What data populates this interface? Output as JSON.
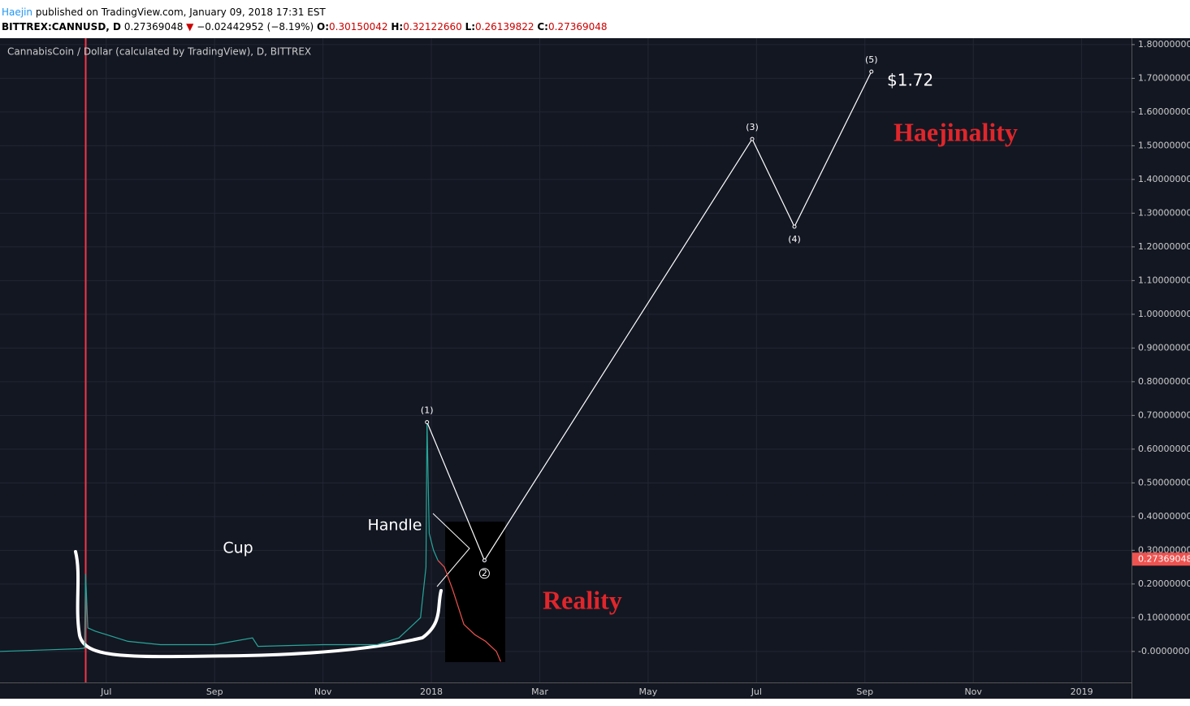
{
  "header": {
    "author": "Haejin",
    "published": " published on TradingView.com, January 09, 2018 17:31 EST",
    "symbol": "BITTREX:CANNUSD, D",
    "last": "0.27369048",
    "arrow": "▼",
    "change": "−0.02442952 (−8.19%)",
    "o_label": "O:",
    "open": "0.30150042",
    "h_label": "H:",
    "high": "0.32122660",
    "l_label": "L:",
    "low": "0.26139822",
    "c_label": "C:",
    "close": "0.27369048"
  },
  "chart_data": {
    "type": "line",
    "title": "CannabisCoin / Dollar (calculated by TradingView), D, BITTREX",
    "categories": [
      "Jul",
      "Sep",
      "Nov",
      "2018",
      "Mar",
      "May",
      "Jul",
      "Sep",
      "Nov",
      "2019"
    ],
    "xlim": [
      -0.98,
      9.46
    ],
    "ylim": [
      -0.092,
      1.819
    ],
    "grid": true,
    "yticks": [
      {
        "value": 1.8,
        "label": "1.80000000"
      },
      {
        "value": 1.7,
        "label": "1.70000000"
      },
      {
        "value": 1.6,
        "label": "1.60000000"
      },
      {
        "value": 1.5,
        "label": "1.50000000"
      },
      {
        "value": 1.4,
        "label": "1.40000000"
      },
      {
        "value": 1.3,
        "label": "1.30000000"
      },
      {
        "value": 1.2,
        "label": "1.20000000"
      },
      {
        "value": 1.1,
        "label": "1.10000000"
      },
      {
        "value": 1.0,
        "label": "1.00000000"
      },
      {
        "value": 0.9,
        "label": "0.90000000"
      },
      {
        "value": 0.8,
        "label": "0.80000000"
      },
      {
        "value": 0.7,
        "label": "0.70000000"
      },
      {
        "value": 0.6,
        "label": "0.60000000"
      },
      {
        "value": 0.5,
        "label": "0.50000000"
      },
      {
        "value": 0.4,
        "label": "0.40000000"
      },
      {
        "value": 0.3,
        "label": "0.30000000"
      },
      {
        "value": 0.2,
        "label": "0.20000000"
      },
      {
        "value": 0.1,
        "label": "0.10000000"
      },
      {
        "value": 0,
        "label": "-0.00000000"
      }
    ],
    "last_price": {
      "value": 0.27369048,
      "label": "0.27369048"
    },
    "series": [
      {
        "color": "#26a69a",
        "x": [
          -0.98,
          -0.5,
          -0.25,
          -0.2,
          -0.19,
          -0.17,
          -0.1,
          0.2,
          0.5,
          1.0,
          1.35,
          1.4,
          2.0,
          2.5,
          2.7,
          2.8,
          2.9,
          2.95,
          2.96,
          2.98,
          3.02,
          3.06
        ],
        "values": [
          0.0,
          0.005,
          0.008,
          0.01,
          0.23,
          0.07,
          0.06,
          0.03,
          0.02,
          0.02,
          0.04,
          0.015,
          0.02,
          0.02,
          0.04,
          0.07,
          0.1,
          0.25,
          0.68,
          0.35,
          0.3,
          0.27
        ]
      },
      {
        "color": "#ef5350",
        "x": [
          3.06,
          3.12,
          3.2,
          3.3,
          3.4,
          3.5,
          3.6,
          3.64
        ],
        "values": [
          0.27,
          0.25,
          0.18,
          0.08,
          0.05,
          0.03,
          0.0,
          -0.03
        ]
      },
      {
        "color": "#ffffff",
        "x": [
          2.96,
          3.49,
          5.96,
          6.35,
          7.06
        ],
        "values": [
          0.68,
          0.27,
          1.52,
          1.26,
          1.72
        ],
        "point_labels": [
          "(1)",
          "2",
          "(3)",
          "(4)",
          "(5)"
        ]
      }
    ],
    "annotations": [
      "Cup",
      "Handle",
      "$1.72",
      "Haejinality",
      "Reality"
    ]
  }
}
